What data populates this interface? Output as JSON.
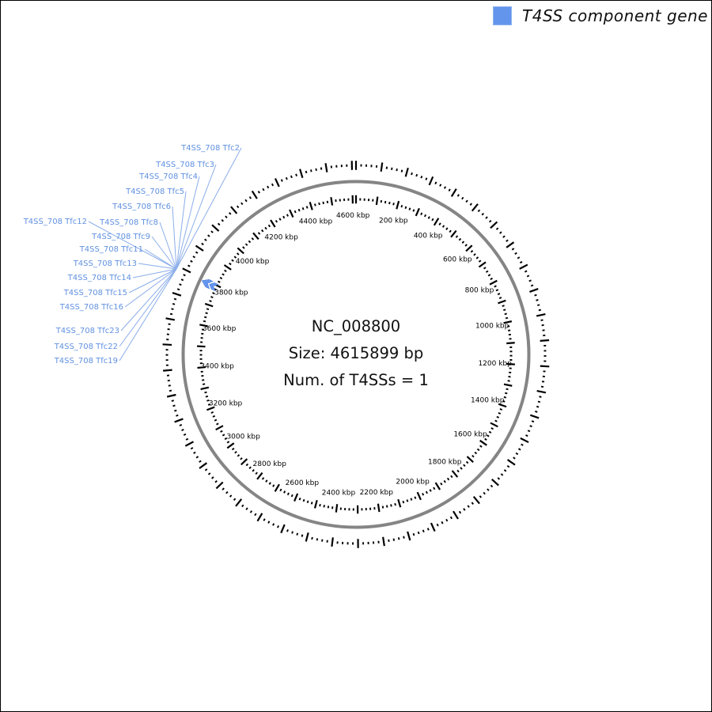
{
  "legend": {
    "label": "T4SS component gene",
    "swatch_color": "#6495ED"
  },
  "center": {
    "accession": "NC_008800",
    "size": "Size: 4615899 bp",
    "num_t4ss": "Num. of T4SSs = 1"
  },
  "chart_data": {
    "type": "circular-genome-map",
    "title": "NC_008800",
    "genome_size_bp": 4615899,
    "num_t4ss": 1,
    "unit": "kbp",
    "axis": {
      "minor_tick_interval_kbp": 20,
      "major_tick_interval_kbp": 100,
      "label_interval_kbp": 200,
      "origin_double_tick": true,
      "tick_labels": [
        "200 kbp",
        "400 kbp",
        "600 kbp",
        "800 kbp",
        "1000 kbp",
        "1200 kbp",
        "1400 kbp",
        "1600 kbp",
        "1800 kbp",
        "2000 kbp",
        "2200 kbp",
        "2400 kbp",
        "2600 kbp",
        "2800 kbp",
        "3000 kbp",
        "3200 kbp",
        "3400 kbp",
        "3600 kbp",
        "3800 kbp",
        "4000 kbp",
        "4200 kbp",
        "4400 kbp",
        "4600 kbp"
      ]
    },
    "gene_labels": [
      "T4SS_708 Tfc2",
      "T4SS_708 Tfc3",
      "T4SS_708 Tfc4",
      "T4SS_708 Tfc5",
      "T4SS_708 Tfc6",
      "T4SS_708 Tfc12",
      "T4SS_708 Tfc8",
      "T4SS_708 Tfc9",
      "T4SS_708 Tfc11",
      "T4SS_708 Tfc13",
      "T4SS_708 Tfc14",
      "T4SS_708 Tfc15",
      "T4SS_708 Tfc16",
      "T4SS_708 Tfc23",
      "T4SS_708 Tfc22",
      "T4SS_708 Tfc19"
    ],
    "gene_cluster_location_kbp": 3790,
    "gene_strand": "reverse",
    "colors": {
      "gene": "#6495ED",
      "gene_label_text": "#6191e0",
      "callout_line": "#8aadea",
      "genome_ring": "#858585",
      "tick": "#000000",
      "label_text": "#000000"
    }
  }
}
